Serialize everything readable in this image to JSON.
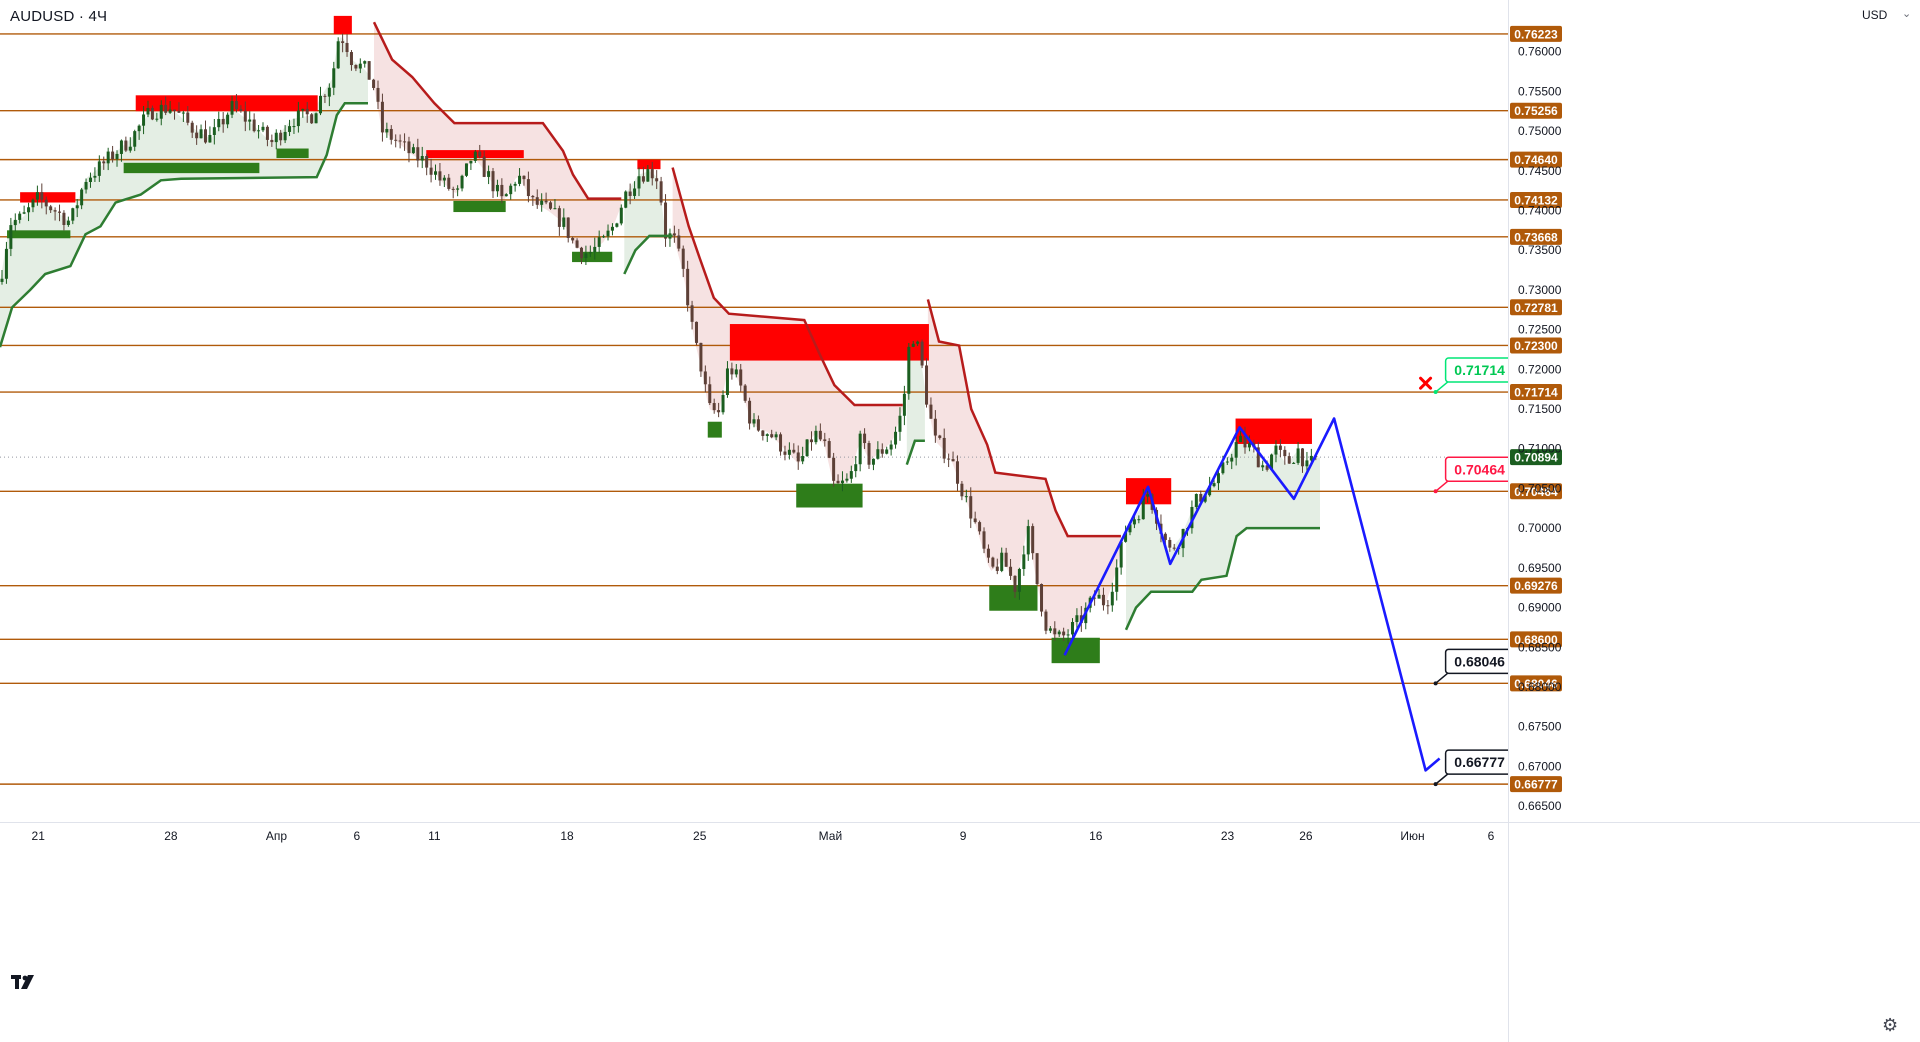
{
  "header": {
    "symbol": "AUDUSD · 4Ч",
    "currency": "USD"
  },
  "colors": {
    "level": "#b05a0a",
    "supply": "#ff0000",
    "demand": "#2e7d1a",
    "up_candle": "#1b5e20",
    "down_candle": "#5d4037",
    "trail_down": "#b71c1c",
    "trail_up": "#2e7d32",
    "zigzag": "#1a1aff",
    "current": "#1b5e20"
  },
  "icons": {
    "logo": "tradingview-logo-icon",
    "settings": "gear-icon",
    "invalid": "red-x-mark-icon"
  },
  "chart_data": {
    "type": "candlestick",
    "symbol": "AUDUSD",
    "timeframe": "4Ч",
    "ylim": [
      0.663,
      0.7665
    ],
    "xlim": [
      0,
      1500
    ],
    "y_ticks": [
      "0.76000",
      "0.75500",
      "0.75000",
      "0.74500",
      "0.74000",
      "0.73500",
      "0.73000",
      "0.72500",
      "0.72000",
      "0.71500",
      "0.71000",
      "0.70500",
      "0.70000",
      "0.69500",
      "0.69000",
      "0.68500",
      "0.68000",
      "0.67500",
      "0.67000",
      "0.66500"
    ],
    "x_ticks": [
      {
        "label": "21",
        "x": 38
      },
      {
        "label": "28",
        "x": 170
      },
      {
        "label": "Апр",
        "x": 275
      },
      {
        "label": "6",
        "x": 355
      },
      {
        "label": "11",
        "x": 432
      },
      {
        "label": "18",
        "x": 564
      },
      {
        "label": "25",
        "x": 696
      },
      {
        "label": "Май",
        "x": 826
      },
      {
        "label": "9",
        "x": 958
      },
      {
        "label": "16",
        "x": 1090
      },
      {
        "label": "23",
        "x": 1221
      },
      {
        "label": "26",
        "x": 1299
      },
      {
        "label": "Июн",
        "x": 1405
      },
      {
        "label": "6",
        "x": 1483
      }
    ],
    "levels": [
      "0.76223",
      "0.75256",
      "0.74640",
      "0.74132",
      "0.73668",
      "0.72781",
      "0.72300",
      "0.71714",
      "0.70464",
      "0.69276",
      "0.68600",
      "0.68046",
      "0.66777"
    ],
    "current_price": "0.70894",
    "callouts": [
      {
        "label": "0.71714",
        "x": 1428,
        "price": 0.71714,
        "style": "green"
      },
      {
        "label": "0.70464",
        "x": 1428,
        "price": 0.70464,
        "style": "red"
      },
      {
        "label": "0.68046",
        "x": 1428,
        "price": 0.68046,
        "style": "black"
      },
      {
        "label": "0.66777",
        "x": 1428,
        "price": 0.66777,
        "style": "black"
      }
    ],
    "invalidation_mark": {
      "x": 1418,
      "price": 0.71825
    },
    "zones": [
      {
        "kind": "supply",
        "x1": 20,
        "x2": 75,
        "p1": 0.7423,
        "p2": 0.741
      },
      {
        "kind": "supply",
        "x1": 135,
        "x2": 316,
        "p1": 0.7545,
        "p2": 0.7525
      },
      {
        "kind": "supply",
        "x1": 332,
        "x2": 350,
        "p1": 0.7645,
        "p2": 0.7622
      },
      {
        "kind": "supply",
        "x1": 424,
        "x2": 521,
        "p1": 0.7476,
        "p2": 0.7466
      },
      {
        "kind": "supply",
        "x1": 634,
        "x2": 657,
        "p1": 0.7464,
        "p2": 0.7452
      },
      {
        "kind": "supply",
        "x1": 726,
        "x2": 924,
        "p1": 0.7257,
        "p2": 0.7211
      },
      {
        "kind": "supply",
        "x1": 1120,
        "x2": 1165,
        "p1": 0.7063,
        "p2": 0.703
      },
      {
        "kind": "supply",
        "x1": 1229,
        "x2": 1305,
        "p1": 0.7138,
        "p2": 0.7106
      },
      {
        "kind": "demand",
        "x1": 7,
        "x2": 70,
        "p1": 0.7375,
        "p2": 0.7365
      },
      {
        "kind": "demand",
        "x1": 123,
        "x2": 258,
        "p1": 0.746,
        "p2": 0.7447
      },
      {
        "kind": "demand",
        "x1": 275,
        "x2": 307,
        "p1": 0.7478,
        "p2": 0.7466
      },
      {
        "kind": "demand",
        "x1": 451,
        "x2": 503,
        "p1": 0.7412,
        "p2": 0.7398
      },
      {
        "kind": "demand",
        "x1": 569,
        "x2": 609,
        "p1": 0.7348,
        "p2": 0.7335
      },
      {
        "kind": "demand",
        "x1": 704,
        "x2": 718,
        "p1": 0.7134,
        "p2": 0.7114
      },
      {
        "kind": "demand",
        "x1": 792,
        "x2": 858,
        "p1": 0.7056,
        "p2": 0.7026
      },
      {
        "kind": "demand",
        "x1": 984,
        "x2": 1032,
        "p1": 0.6928,
        "p2": 0.6896
      },
      {
        "kind": "demand",
        "x1": 1046,
        "x2": 1094,
        "p1": 0.6862,
        "p2": 0.683
      }
    ],
    "trail_down": [
      [
        [
          372,
          0.7637
        ],
        [
          390,
          0.759
        ],
        [
          410,
          0.7568
        ],
        [
          432,
          0.7535
        ],
        [
          452,
          0.751
        ],
        [
          480,
          0.751
        ],
        [
          540,
          0.751
        ],
        [
          560,
          0.7475
        ],
        [
          570,
          0.7445
        ],
        [
          585,
          0.7415
        ],
        [
          618,
          0.7415
        ]
      ],
      [
        [
          669,
          0.7454
        ],
        [
          685,
          0.738
        ],
        [
          696,
          0.734
        ],
        [
          710,
          0.729
        ],
        [
          725,
          0.727
        ],
        [
          800,
          0.7262
        ],
        [
          815,
          0.722
        ],
        [
          830,
          0.718
        ],
        [
          850,
          0.7155
        ],
        [
          898,
          0.7155
        ]
      ],
      [
        [
          923,
          0.7288
        ],
        [
          934,
          0.7235
        ],
        [
          954,
          0.723
        ],
        [
          966,
          0.715
        ],
        [
          982,
          0.7105
        ],
        [
          990,
          0.707
        ],
        [
          1040,
          0.7062
        ],
        [
          1050,
          0.7022
        ],
        [
          1062,
          0.699
        ],
        [
          1115,
          0.699
        ]
      ]
    ],
    "trail_up": [
      [
        [
          0,
          0.7228
        ],
        [
          12,
          0.7278
        ],
        [
          30,
          0.73
        ],
        [
          45,
          0.732
        ],
        [
          70,
          0.733
        ],
        [
          85,
          0.737
        ],
        [
          100,
          0.738
        ],
        [
          115,
          0.741
        ],
        [
          140,
          0.742
        ],
        [
          160,
          0.7438
        ],
        [
          180,
          0.744
        ],
        [
          315,
          0.7442
        ],
        [
          325,
          0.747
        ],
        [
          335,
          0.752
        ],
        [
          343,
          0.7535
        ],
        [
          366,
          0.7535
        ]
      ],
      [
        [
          621,
          0.732
        ],
        [
          632,
          0.735
        ],
        [
          646,
          0.7368
        ],
        [
          669,
          0.7368
        ]
      ],
      [
        [
          902,
          0.708
        ],
        [
          910,
          0.711
        ],
        [
          920,
          0.711
        ]
      ],
      [
        [
          1120,
          0.6872
        ],
        [
          1130,
          0.69
        ],
        [
          1145,
          0.692
        ],
        [
          1186,
          0.692
        ],
        [
          1195,
          0.6935
        ],
        [
          1220,
          0.694
        ],
        [
          1230,
          0.699
        ],
        [
          1240,
          0.7
        ],
        [
          1313,
          0.7
        ]
      ]
    ],
    "candle_anchors": [
      [
        0,
        0.731
      ],
      [
        10,
        0.7385
      ],
      [
        22,
        0.739
      ],
      [
        38,
        0.7415
      ],
      [
        55,
        0.74
      ],
      [
        70,
        0.7385
      ],
      [
        85,
        0.744
      ],
      [
        100,
        0.7455
      ],
      [
        112,
        0.747
      ],
      [
        130,
        0.749
      ],
      [
        150,
        0.7525
      ],
      [
        170,
        0.753
      ],
      [
        190,
        0.7505
      ],
      [
        210,
        0.749
      ],
      [
        230,
        0.753
      ],
      [
        250,
        0.751
      ],
      [
        270,
        0.7485
      ],
      [
        290,
        0.7515
      ],
      [
        310,
        0.752
      ],
      [
        320,
        0.7545
      ],
      [
        330,
        0.7565
      ],
      [
        337,
        0.762
      ],
      [
        343,
        0.7615
      ],
      [
        350,
        0.759
      ],
      [
        365,
        0.7575
      ],
      [
        372,
        0.7555
      ],
      [
        380,
        0.75
      ],
      [
        392,
        0.749
      ],
      [
        410,
        0.747
      ],
      [
        425,
        0.746
      ],
      [
        440,
        0.7435
      ],
      [
        455,
        0.742
      ],
      [
        470,
        0.747
      ],
      [
        485,
        0.7445
      ],
      [
        500,
        0.741
      ],
      [
        515,
        0.7445
      ],
      [
        530,
        0.741
      ],
      [
        545,
        0.74
      ],
      [
        560,
        0.7385
      ],
      [
        572,
        0.7355
      ],
      [
        585,
        0.7345
      ],
      [
        600,
        0.736
      ],
      [
        610,
        0.738
      ],
      [
        622,
        0.742
      ],
      [
        635,
        0.7445
      ],
      [
        647,
        0.745
      ],
      [
        655,
        0.744
      ],
      [
        662,
        0.737
      ],
      [
        670,
        0.7365
      ],
      [
        680,
        0.732
      ],
      [
        690,
        0.724
      ],
      [
        698,
        0.72
      ],
      [
        705,
        0.715
      ],
      [
        715,
        0.7145
      ],
      [
        725,
        0.7205
      ],
      [
        735,
        0.7185
      ],
      [
        748,
        0.713
      ],
      [
        765,
        0.712
      ],
      [
        780,
        0.71
      ],
      [
        795,
        0.708
      ],
      [
        810,
        0.712
      ],
      [
        820,
        0.7105
      ],
      [
        830,
        0.705
      ],
      [
        845,
        0.706
      ],
      [
        855,
        0.711
      ],
      [
        865,
        0.7085
      ],
      [
        875,
        0.7095
      ],
      [
        888,
        0.711
      ],
      [
        898,
        0.715
      ],
      [
        906,
        0.725
      ],
      [
        915,
        0.722
      ],
      [
        922,
        0.716
      ],
      [
        930,
        0.711
      ],
      [
        945,
        0.709
      ],
      [
        958,
        0.7045
      ],
      [
        970,
        0.7005
      ],
      [
        985,
        0.6945
      ],
      [
        998,
        0.696
      ],
      [
        1010,
        0.6925
      ],
      [
        1022,
        0.7
      ],
      [
        1030,
        0.694
      ],
      [
        1040,
        0.688
      ],
      [
        1050,
        0.686
      ],
      [
        1060,
        0.6865
      ],
      [
        1075,
        0.6885
      ],
      [
        1090,
        0.6915
      ],
      [
        1100,
        0.6905
      ],
      [
        1110,
        0.6945
      ],
      [
        1120,
        0.7
      ],
      [
        1132,
        0.702
      ],
      [
        1142,
        0.7045
      ],
      [
        1152,
        0.701
      ],
      [
        1163,
        0.697
      ],
      [
        1175,
        0.699
      ],
      [
        1188,
        0.703
      ],
      [
        1200,
        0.705
      ],
      [
        1212,
        0.706
      ],
      [
        1222,
        0.709
      ],
      [
        1232,
        0.711
      ],
      [
        1245,
        0.71
      ],
      [
        1258,
        0.7075
      ],
      [
        1268,
        0.71
      ],
      [
        1280,
        0.708
      ],
      [
        1292,
        0.71
      ],
      [
        1300,
        0.7075
      ],
      [
        1310,
        0.7089
      ]
    ],
    "zigzag": [
      [
        1059,
        0.684
      ],
      [
        1142,
        0.7052
      ],
      [
        1164,
        0.6955
      ],
      [
        1233,
        0.7127
      ],
      [
        1287,
        0.7037
      ],
      [
        1327,
        0.7138
      ],
      [
        1418,
        0.6695
      ],
      [
        1432,
        0.671
      ]
    ]
  }
}
